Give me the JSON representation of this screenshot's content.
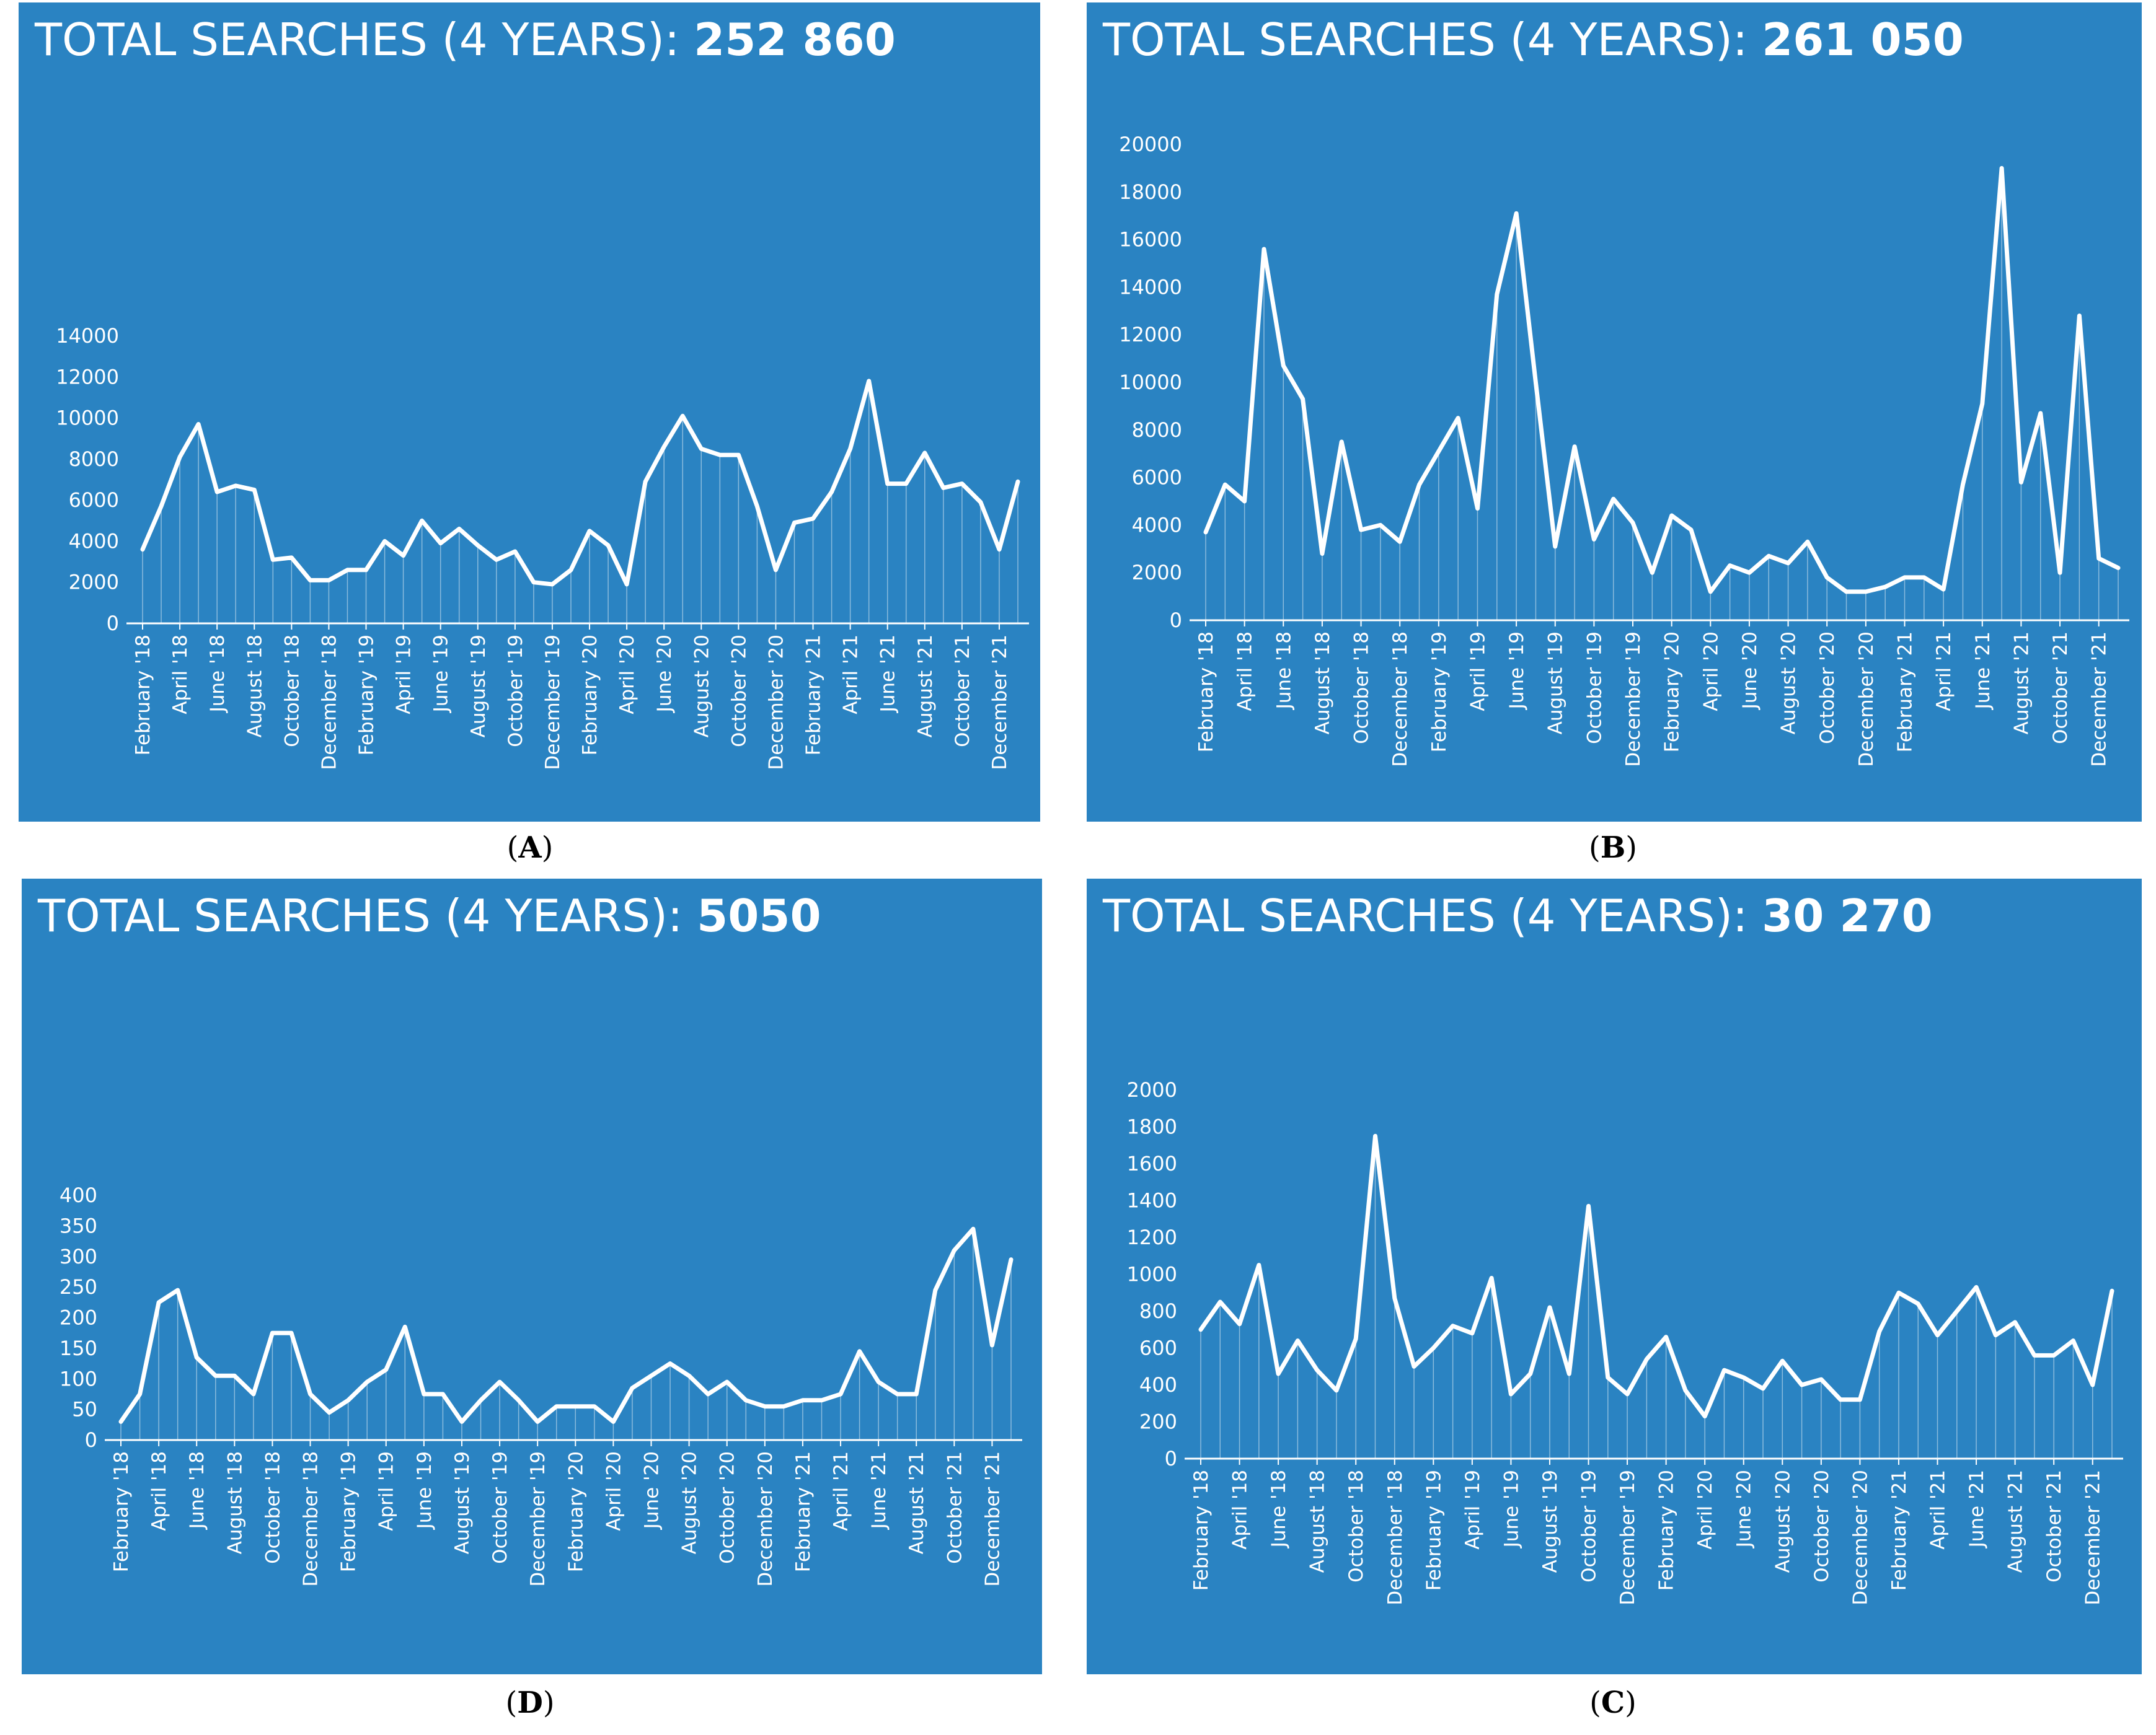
{
  "theme": {
    "panel_bg": "#2a83c2",
    "line": "#ffffff"
  },
  "months": [
    "February '18",
    "March '18",
    "April '18",
    "May '18",
    "June '18",
    "July '18",
    "August '18",
    "September '18",
    "October '18",
    "November '18",
    "December '18",
    "January '19",
    "February '19",
    "March '19",
    "April '19",
    "May '19",
    "June '19",
    "July '19",
    "August '19",
    "September '19",
    "October '19",
    "November '19",
    "December '19",
    "January '20",
    "February '20",
    "March '20",
    "April '20",
    "May '20",
    "June '20",
    "July '20",
    "August '20",
    "September '20",
    "October '20",
    "November '20",
    "December '20",
    "January '21",
    "February '21",
    "March '21",
    "April '21",
    "May '21",
    "June '21",
    "July '21",
    "August '21",
    "September '21",
    "October '21",
    "November '21",
    "December '21",
    "January '22"
  ],
  "tick_labels": [
    "February '18",
    "April '18",
    "June '18",
    "August '18",
    "October '18",
    "December '18",
    "February '19",
    "April '19",
    "June '19",
    "August '19",
    "October '19",
    "December '19",
    "February '20",
    "April '20",
    "June '20",
    "August '20",
    "October '20",
    "December '20",
    "February '21",
    "April '21",
    "June '21",
    "August '21",
    "October '21",
    "December '21"
  ],
  "chart_data": [
    {
      "id": "A",
      "caption_letter": "A",
      "type": "area",
      "title_prefix": "TOTAL SEARCHES (4 YEARS):",
      "title_total": "252 860",
      "xlabel": "",
      "ylabel": "",
      "ylim": [
        0,
        14000
      ],
      "yticks": [
        "0",
        "2000",
        "4000",
        "6000",
        "8000",
        "10000",
        "12000",
        "14000"
      ],
      "values": [
        3600,
        5700,
        8100,
        9700,
        6400,
        6700,
        6500,
        3100,
        3200,
        2100,
        2100,
        2600,
        2600,
        4000,
        3300,
        5000,
        3900,
        4600,
        3800,
        3100,
        3500,
        2000,
        1900,
        2600,
        4500,
        3800,
        1900,
        6900,
        8600,
        10100,
        8500,
        8200,
        8200,
        5700,
        2600,
        4900,
        5100,
        6400,
        8500,
        11800,
        6800,
        6800,
        8300,
        6600,
        6800,
        5900,
        3600,
        6900
      ]
    },
    {
      "id": "B",
      "caption_letter": "B",
      "type": "area",
      "title_prefix": "TOTAL SEARCHES (4 YEARS):",
      "title_total": "261 050",
      "xlabel": "",
      "ylabel": "",
      "ylim": [
        0,
        20000
      ],
      "yticks": [
        "0",
        "2000",
        "4000",
        "6000",
        "8000",
        "10000",
        "12000",
        "14000",
        "16000",
        "18000",
        "20000"
      ],
      "values": [
        3700,
        5700,
        5000,
        15600,
        10700,
        9300,
        2800,
        7500,
        3800,
        4000,
        3300,
        5700,
        7100,
        8500,
        4700,
        13700,
        17100,
        10000,
        3100,
        7300,
        3400,
        5100,
        4100,
        2000,
        4400,
        3800,
        1200,
        2300,
        2000,
        2700,
        2400,
        3300,
        1800,
        1200,
        1200,
        1400,
        1800,
        1800,
        1300,
        5700,
        9100,
        19000,
        5800,
        8700,
        2000,
        12800,
        2600,
        2200
      ]
    },
    {
      "id": "D",
      "caption_letter": "D",
      "type": "area",
      "title_prefix": "TOTAL SEARCHES (4 YEARS):",
      "title_total": "5050",
      "xlabel": "",
      "ylabel": "",
      "ylim": [
        0,
        400
      ],
      "yticks": [
        "0",
        "50",
        "100",
        "150",
        "200",
        "250",
        "300",
        "350",
        "400"
      ],
      "values": [
        30,
        75,
        225,
        245,
        135,
        105,
        105,
        75,
        175,
        175,
        75,
        45,
        65,
        95,
        115,
        185,
        75,
        75,
        30,
        65,
        95,
        65,
        30,
        55,
        55,
        55,
        30,
        85,
        105,
        125,
        105,
        75,
        95,
        65,
        55,
        55,
        65,
        65,
        75,
        145,
        95,
        75,
        75,
        245,
        310,
        345,
        155,
        295
      ]
    },
    {
      "id": "C",
      "caption_letter": "C",
      "type": "area",
      "title_prefix": "TOTAL SEARCHES (4 YEARS):",
      "title_total": "30 270",
      "xlabel": "",
      "ylabel": "",
      "ylim": [
        0,
        2000
      ],
      "yticks": [
        "0",
        "200",
        "400",
        "600",
        "800",
        "1000",
        "1200",
        "1400",
        "1600",
        "1800",
        "2000"
      ],
      "values": [
        700,
        850,
        730,
        1050,
        460,
        640,
        480,
        370,
        650,
        1750,
        870,
        500,
        600,
        720,
        680,
        980,
        350,
        460,
        820,
        460,
        1370,
        440,
        350,
        540,
        660,
        370,
        230,
        480,
        440,
        380,
        530,
        400,
        430,
        320,
        320,
        690,
        900,
        840,
        670,
        800,
        930,
        670,
        740,
        560,
        560,
        640,
        400,
        910
      ]
    }
  ]
}
